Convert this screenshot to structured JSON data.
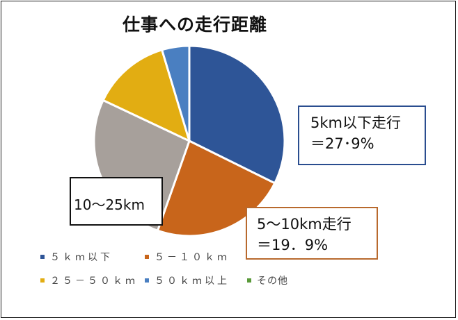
{
  "chart_data": {
    "type": "pie",
    "title": "仕事への走行距離",
    "categories": [
      "５ｋｍ以下",
      "５－１０ｋｍ",
      "２５－５０ｋｍ",
      "５０ｋｍ以上",
      "その他"
    ],
    "slices": [
      {
        "label": "５ｋｍ以下",
        "value": 27.9,
        "color": "#2e5597"
      },
      {
        "label": "５－１０ｋｍ",
        "value": 19.9,
        "color": "#c8651b"
      },
      {
        "label": "10〜25km",
        "value": 23.0,
        "color": "#a7a09b"
      },
      {
        "label": "２５－５０ｋｍ",
        "value": 11.5,
        "color": "#e2ad12"
      },
      {
        "label": "５０ｋｍ以上",
        "value": 4.0,
        "color": "#4a7fc1"
      }
    ],
    "legend": [
      {
        "label": "５ｋｍ以下",
        "color": "#2e5597"
      },
      {
        "label": "５－１０ｋｍ",
        "color": "#c8651b"
      },
      {
        "label": "２５－５０ｋｍ",
        "color": "#e2ad12"
      },
      {
        "label": "５０ｋｍ以上",
        "color": "#4a7fc1"
      },
      {
        "label": "その他",
        "color": "#5a9a3a"
      }
    ],
    "legend_position": "bottom",
    "callouts": {
      "blue_line1": "5km以下走行",
      "blue_line2": "＝27･9%",
      "orange_line1": "5〜10km走行",
      "orange_line2": "＝19．9%",
      "black": "10〜25km"
    }
  }
}
